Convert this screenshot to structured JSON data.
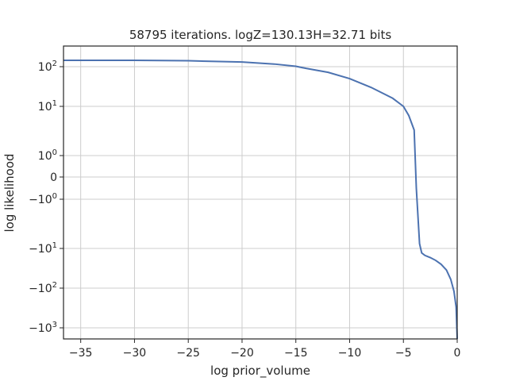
{
  "chart_data": {
    "type": "line",
    "title": "58795 iterations. logZ=130.13H=32.71 bits",
    "xlabel": "log prior_volume",
    "ylabel": "log likelihood",
    "xlim": [
      -36.6,
      0
    ],
    "yscale": "symlog",
    "grid": true,
    "x_ticks": [
      {
        "value": -35,
        "label": "−35"
      },
      {
        "value": -30,
        "label": "−30"
      },
      {
        "value": -25,
        "label": "−25"
      },
      {
        "value": -20,
        "label": "−20"
      },
      {
        "value": -15,
        "label": "−15"
      },
      {
        "value": -10,
        "label": "−10"
      },
      {
        "value": -5,
        "label": "−5"
      },
      {
        "value": 0,
        "label": "0"
      }
    ],
    "y_ticks": [
      {
        "value": 100,
        "base": "10",
        "exp": "2"
      },
      {
        "value": 10,
        "base": "10",
        "exp": "1"
      },
      {
        "value": 1,
        "base": "10",
        "exp": "0"
      },
      {
        "value": 0,
        "base": "0",
        "exp": ""
      },
      {
        "value": -1,
        "base": "−10",
        "exp": "0"
      },
      {
        "value": -10,
        "base": "−10",
        "exp": "1"
      },
      {
        "value": -100,
        "base": "−10",
        "exp": "2"
      },
      {
        "value": -1000,
        "base": "−10",
        "exp": "3"
      }
    ],
    "line_color": "#4c72b0",
    "series": [
      {
        "name": "",
        "x": [
          -36.6,
          -30,
          -25,
          -20,
          -17,
          -15,
          -14,
          -12,
          -10,
          -8,
          -6,
          -5,
          -4.5,
          -4.0,
          -3.8,
          -3.5,
          -3.3,
          -3.0,
          -2.5,
          -2.0,
          -1.5,
          -1.0,
          -0.6,
          -0.3,
          -0.1,
          0
        ],
        "y": [
          140,
          140,
          137,
          128,
          115,
          102,
          90,
          72,
          50,
          30,
          16,
          10,
          6.5,
          3.3,
          -0.5,
          -8,
          -13,
          -15,
          -17,
          -20,
          -25,
          -35,
          -60,
          -120,
          -300,
          -2000
        ]
      }
    ]
  }
}
